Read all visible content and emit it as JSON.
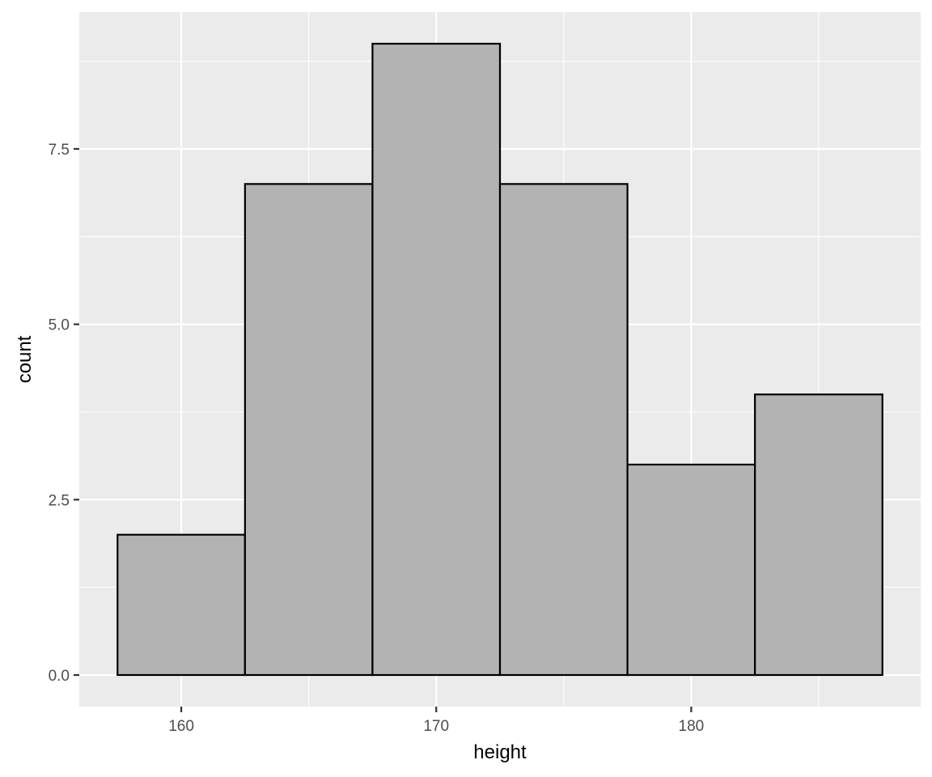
{
  "chart_data": {
    "type": "bar",
    "subtype": "histogram",
    "title": "",
    "xlabel": "height",
    "ylabel": "count",
    "bins": [
      {
        "start": 157.5,
        "end": 162.5,
        "count": 2
      },
      {
        "start": 162.5,
        "end": 167.5,
        "count": 7
      },
      {
        "start": 167.5,
        "end": 172.5,
        "count": 9
      },
      {
        "start": 172.5,
        "end": 177.5,
        "count": 7
      },
      {
        "start": 177.5,
        "end": 182.5,
        "count": 3
      },
      {
        "start": 182.5,
        "end": 187.5,
        "count": 4
      }
    ],
    "xlim": [
      156,
      189
    ],
    "ylim": [
      -0.45,
      9.45
    ],
    "x_ticks": [
      160,
      170,
      180
    ],
    "x_tick_labels": [
      "160",
      "170",
      "180"
    ],
    "y_ticks": [
      0,
      2.5,
      5,
      7.5
    ],
    "y_tick_labels": [
      "0.0",
      "2.5",
      "5.0",
      "7.5"
    ],
    "x_minor_ticks": [
      155,
      165,
      175,
      185
    ],
    "y_minor_ticks": [
      1.25,
      3.75,
      6.25,
      8.75
    ],
    "grid": true,
    "legend": "none",
    "colors": {
      "panel_background": "#ebebeb",
      "grid_line": "#ffffff",
      "bar_fill": "#b3b3b3",
      "bar_outline": "#000000",
      "tick_mark": "#333333"
    }
  }
}
